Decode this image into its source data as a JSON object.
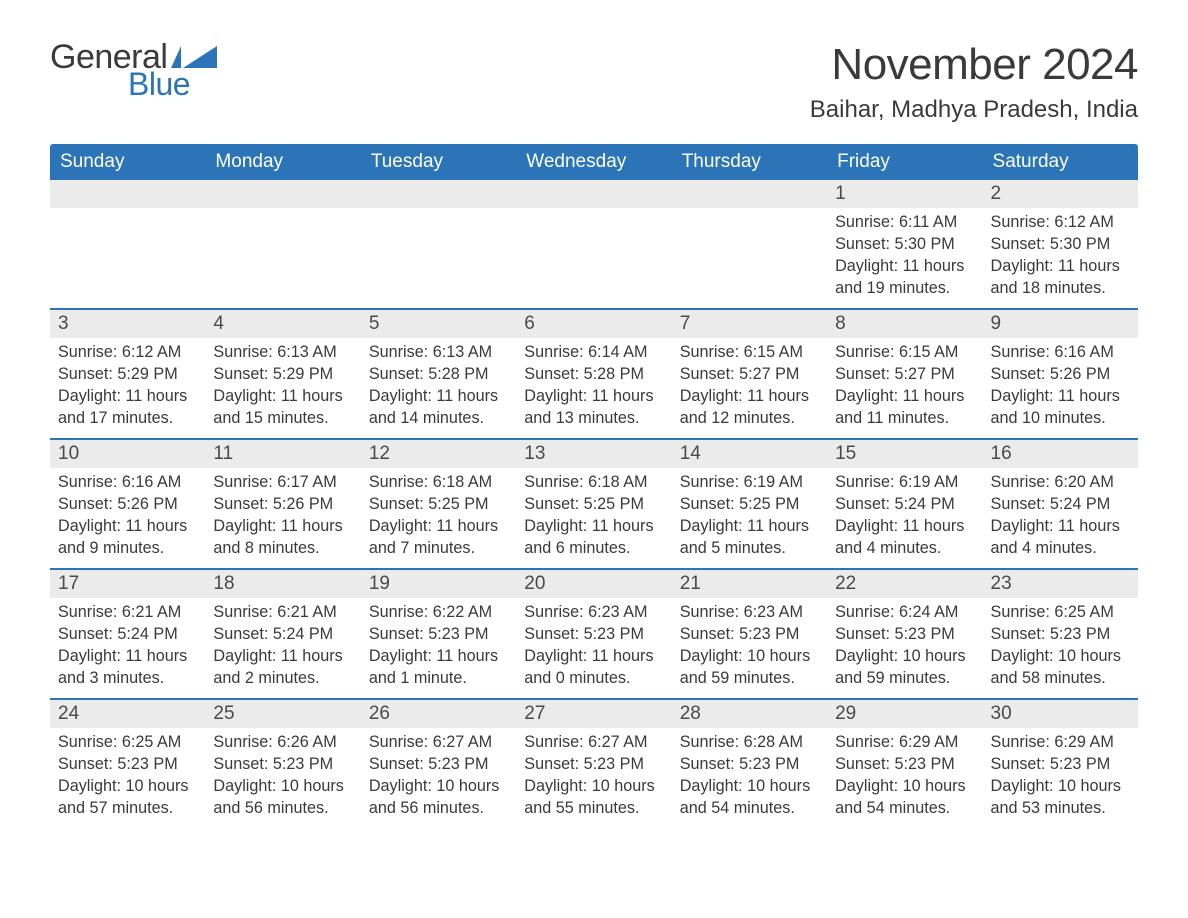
{
  "brand": {
    "word1": "General",
    "word2": "Blue",
    "accent_color": "#2b74b8"
  },
  "header": {
    "month_title": "November 2024",
    "location": "Baihar, Madhya Pradesh, India"
  },
  "calendar": {
    "weekdays": [
      "Sunday",
      "Monday",
      "Tuesday",
      "Wednesday",
      "Thursday",
      "Friday",
      "Saturday"
    ],
    "header_bg": "#2b74b8",
    "header_fg": "#ffffff",
    "daynum_bg": "#ebebeb",
    "row_divider": "#2b74b8",
    "text_color": "#3a3a3a",
    "weeks": [
      [
        null,
        null,
        null,
        null,
        null,
        {
          "n": "1",
          "sunrise": "Sunrise: 6:11 AM",
          "sunset": "Sunset: 5:30 PM",
          "day1": "Daylight: 11 hours",
          "day2": "and 19 minutes."
        },
        {
          "n": "2",
          "sunrise": "Sunrise: 6:12 AM",
          "sunset": "Sunset: 5:30 PM",
          "day1": "Daylight: 11 hours",
          "day2": "and 18 minutes."
        }
      ],
      [
        {
          "n": "3",
          "sunrise": "Sunrise: 6:12 AM",
          "sunset": "Sunset: 5:29 PM",
          "day1": "Daylight: 11 hours",
          "day2": "and 17 minutes."
        },
        {
          "n": "4",
          "sunrise": "Sunrise: 6:13 AM",
          "sunset": "Sunset: 5:29 PM",
          "day1": "Daylight: 11 hours",
          "day2": "and 15 minutes."
        },
        {
          "n": "5",
          "sunrise": "Sunrise: 6:13 AM",
          "sunset": "Sunset: 5:28 PM",
          "day1": "Daylight: 11 hours",
          "day2": "and 14 minutes."
        },
        {
          "n": "6",
          "sunrise": "Sunrise: 6:14 AM",
          "sunset": "Sunset: 5:28 PM",
          "day1": "Daylight: 11 hours",
          "day2": "and 13 minutes."
        },
        {
          "n": "7",
          "sunrise": "Sunrise: 6:15 AM",
          "sunset": "Sunset: 5:27 PM",
          "day1": "Daylight: 11 hours",
          "day2": "and 12 minutes."
        },
        {
          "n": "8",
          "sunrise": "Sunrise: 6:15 AM",
          "sunset": "Sunset: 5:27 PM",
          "day1": "Daylight: 11 hours",
          "day2": "and 11 minutes."
        },
        {
          "n": "9",
          "sunrise": "Sunrise: 6:16 AM",
          "sunset": "Sunset: 5:26 PM",
          "day1": "Daylight: 11 hours",
          "day2": "and 10 minutes."
        }
      ],
      [
        {
          "n": "10",
          "sunrise": "Sunrise: 6:16 AM",
          "sunset": "Sunset: 5:26 PM",
          "day1": "Daylight: 11 hours",
          "day2": "and 9 minutes."
        },
        {
          "n": "11",
          "sunrise": "Sunrise: 6:17 AM",
          "sunset": "Sunset: 5:26 PM",
          "day1": "Daylight: 11 hours",
          "day2": "and 8 minutes."
        },
        {
          "n": "12",
          "sunrise": "Sunrise: 6:18 AM",
          "sunset": "Sunset: 5:25 PM",
          "day1": "Daylight: 11 hours",
          "day2": "and 7 minutes."
        },
        {
          "n": "13",
          "sunrise": "Sunrise: 6:18 AM",
          "sunset": "Sunset: 5:25 PM",
          "day1": "Daylight: 11 hours",
          "day2": "and 6 minutes."
        },
        {
          "n": "14",
          "sunrise": "Sunrise: 6:19 AM",
          "sunset": "Sunset: 5:25 PM",
          "day1": "Daylight: 11 hours",
          "day2": "and 5 minutes."
        },
        {
          "n": "15",
          "sunrise": "Sunrise: 6:19 AM",
          "sunset": "Sunset: 5:24 PM",
          "day1": "Daylight: 11 hours",
          "day2": "and 4 minutes."
        },
        {
          "n": "16",
          "sunrise": "Sunrise: 6:20 AM",
          "sunset": "Sunset: 5:24 PM",
          "day1": "Daylight: 11 hours",
          "day2": "and 4 minutes."
        }
      ],
      [
        {
          "n": "17",
          "sunrise": "Sunrise: 6:21 AM",
          "sunset": "Sunset: 5:24 PM",
          "day1": "Daylight: 11 hours",
          "day2": "and 3 minutes."
        },
        {
          "n": "18",
          "sunrise": "Sunrise: 6:21 AM",
          "sunset": "Sunset: 5:24 PM",
          "day1": "Daylight: 11 hours",
          "day2": "and 2 minutes."
        },
        {
          "n": "19",
          "sunrise": "Sunrise: 6:22 AM",
          "sunset": "Sunset: 5:23 PM",
          "day1": "Daylight: 11 hours",
          "day2": "and 1 minute."
        },
        {
          "n": "20",
          "sunrise": "Sunrise: 6:23 AM",
          "sunset": "Sunset: 5:23 PM",
          "day1": "Daylight: 11 hours",
          "day2": "and 0 minutes."
        },
        {
          "n": "21",
          "sunrise": "Sunrise: 6:23 AM",
          "sunset": "Sunset: 5:23 PM",
          "day1": "Daylight: 10 hours",
          "day2": "and 59 minutes."
        },
        {
          "n": "22",
          "sunrise": "Sunrise: 6:24 AM",
          "sunset": "Sunset: 5:23 PM",
          "day1": "Daylight: 10 hours",
          "day2": "and 59 minutes."
        },
        {
          "n": "23",
          "sunrise": "Sunrise: 6:25 AM",
          "sunset": "Sunset: 5:23 PM",
          "day1": "Daylight: 10 hours",
          "day2": "and 58 minutes."
        }
      ],
      [
        {
          "n": "24",
          "sunrise": "Sunrise: 6:25 AM",
          "sunset": "Sunset: 5:23 PM",
          "day1": "Daylight: 10 hours",
          "day2": "and 57 minutes."
        },
        {
          "n": "25",
          "sunrise": "Sunrise: 6:26 AM",
          "sunset": "Sunset: 5:23 PM",
          "day1": "Daylight: 10 hours",
          "day2": "and 56 minutes."
        },
        {
          "n": "26",
          "sunrise": "Sunrise: 6:27 AM",
          "sunset": "Sunset: 5:23 PM",
          "day1": "Daylight: 10 hours",
          "day2": "and 56 minutes."
        },
        {
          "n": "27",
          "sunrise": "Sunrise: 6:27 AM",
          "sunset": "Sunset: 5:23 PM",
          "day1": "Daylight: 10 hours",
          "day2": "and 55 minutes."
        },
        {
          "n": "28",
          "sunrise": "Sunrise: 6:28 AM",
          "sunset": "Sunset: 5:23 PM",
          "day1": "Daylight: 10 hours",
          "day2": "and 54 minutes."
        },
        {
          "n": "29",
          "sunrise": "Sunrise: 6:29 AM",
          "sunset": "Sunset: 5:23 PM",
          "day1": "Daylight: 10 hours",
          "day2": "and 54 minutes."
        },
        {
          "n": "30",
          "sunrise": "Sunrise: 6:29 AM",
          "sunset": "Sunset: 5:23 PM",
          "day1": "Daylight: 10 hours",
          "day2": "and 53 minutes."
        }
      ]
    ]
  }
}
